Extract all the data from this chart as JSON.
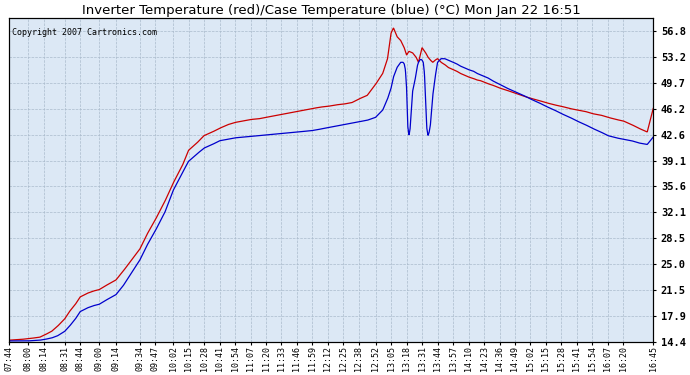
{
  "title": "Inverter Temperature (red)/Case Temperature (blue) (°C) Mon Jan 22 16:51",
  "copyright": "Copyright 2007 Cartronics.com",
  "ylabel_right": [
    "56.8",
    "53.2",
    "49.7",
    "46.2",
    "42.6",
    "39.1",
    "35.6",
    "32.1",
    "28.5",
    "25.0",
    "21.5",
    "17.9",
    "14.4"
  ],
  "yticks": [
    56.8,
    53.2,
    49.7,
    46.2,
    42.6,
    39.1,
    35.6,
    32.1,
    28.5,
    25.0,
    21.5,
    17.9,
    14.4
  ],
  "ymin": 14.4,
  "ymax": 58.5,
  "xtick_labels": [
    "07:44",
    "08:00",
    "08:14",
    "08:31",
    "08:44",
    "09:00",
    "09:14",
    "09:34",
    "09:47",
    "10:02",
    "10:15",
    "10:28",
    "10:41",
    "10:54",
    "11:07",
    "11:20",
    "11:33",
    "11:46",
    "11:59",
    "12:12",
    "12:25",
    "12:38",
    "12:52",
    "13:05",
    "13:18",
    "13:31",
    "13:44",
    "13:57",
    "14:10",
    "14:23",
    "14:36",
    "14:49",
    "15:02",
    "15:15",
    "15:28",
    "15:41",
    "15:54",
    "16:07",
    "16:20",
    "16:45"
  ],
  "bg_color": "#dce8f5",
  "line_color_red": "#cc0000",
  "line_color_blue": "#0000cc",
  "grid_color": "#aabbcc",
  "title_fontsize": 9.5,
  "figwidth": 6.9,
  "figheight": 3.75,
  "dpi": 100
}
